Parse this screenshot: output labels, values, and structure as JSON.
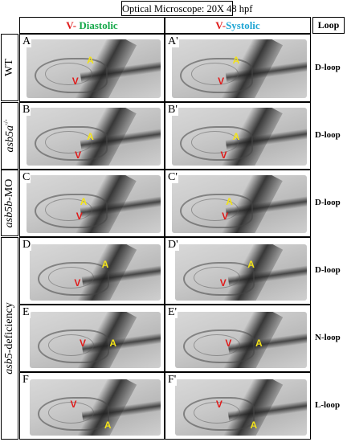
{
  "header": {
    "title": "Optical Microscope: 20X   48 hpf",
    "col_left": {
      "v": "V",
      "dash": "- ",
      "phase": "Diastolic"
    },
    "col_right": {
      "v": "V",
      "dash": "-",
      "phase": "Systolic"
    },
    "loop": "Loop"
  },
  "rows": [
    {
      "label": "WT",
      "left": "A",
      "right": "A'",
      "loop": "D-loop"
    },
    {
      "label_gene": "asb5a",
      "label_sup": "-/-",
      "left": "B",
      "right": "B'",
      "loop": "D-loop"
    },
    {
      "label_gene": "asb5b",
      "label_suffix": "-MO",
      "left": "C",
      "right": "C'",
      "loop": "D-loop"
    },
    {
      "left": "D",
      "right": "D'",
      "loop": "D-loop"
    },
    {
      "left": "E",
      "right": "E'",
      "loop": "N-loop"
    },
    {
      "left": "F",
      "right": "F'",
      "loop": "L-loop"
    }
  ],
  "group_label": {
    "gene": "asb5",
    "suffix": "-deficiency"
  },
  "chambers": {
    "atrium": "A",
    "ventricle": "V"
  },
  "colors": {
    "ventricle": "#e01b1b",
    "atrium": "#f2e21a",
    "diastolic": "#15a84a",
    "systolic": "#21a6d4"
  }
}
